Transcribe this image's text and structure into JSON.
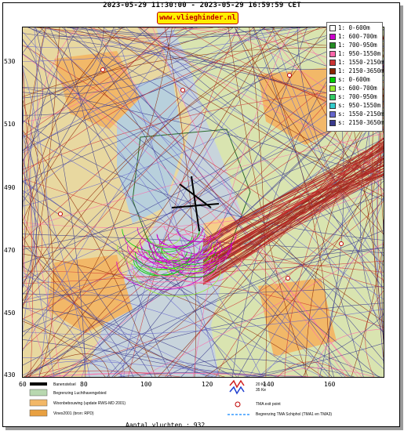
{
  "header": {
    "date_range": "2023-05-29 11:30:00 - 2023-05-29 16:59:59 CET",
    "site": "www.vlieghinder.nl"
  },
  "map": {
    "y_ticks": [
      "530",
      "510",
      "490",
      "470",
      "450",
      "430"
    ],
    "x_ticks": [
      "60",
      "80",
      "100",
      "120",
      "140",
      "160"
    ]
  },
  "legend": [
    {
      "label": "1: 0-600m",
      "color": "#ffffff"
    },
    {
      "label": "1: 600-700m",
      "color": "#cc00cc"
    },
    {
      "label": "1: 700-950m",
      "color": "#228b22"
    },
    {
      "label": "1: 950-1550m",
      "color": "#ff66aa"
    },
    {
      "label": "1: 1550-2150m",
      "color": "#cc3333"
    },
    {
      "label": "1: 2150-3650m",
      "color": "#8b2500"
    },
    {
      "label": "s: 0-600m",
      "color": "#00cc00"
    },
    {
      "label": "s: 600-700m",
      "color": "#99ee33"
    },
    {
      "label": "s: 700-950m",
      "color": "#33cc66"
    },
    {
      "label": "s: 950-1550m",
      "color": "#33cccc"
    },
    {
      "label": "s: 1550-2150m",
      "color": "#6666cc"
    },
    {
      "label": "s: 2150-3650m",
      "color": "#3a3a8c"
    }
  ],
  "footer": {
    "baanenstelsel": "Banenstelsel",
    "luchthaven": "Begrenzing Luchthavengebied",
    "woonbebouwing": "Woonbebouwing (update RWS-MD 2001)",
    "vinex": "Vinex2001 (bron: RPD)",
    "kv20": "20 Ke",
    "kv35": "35 Ke",
    "tma_exit": "TMA exit point",
    "tma_schiphol": "Begrenzing TMA Schiphol  (TMA1 en TMA3)"
  },
  "count_text": "Aantal vluchten : 932"
}
